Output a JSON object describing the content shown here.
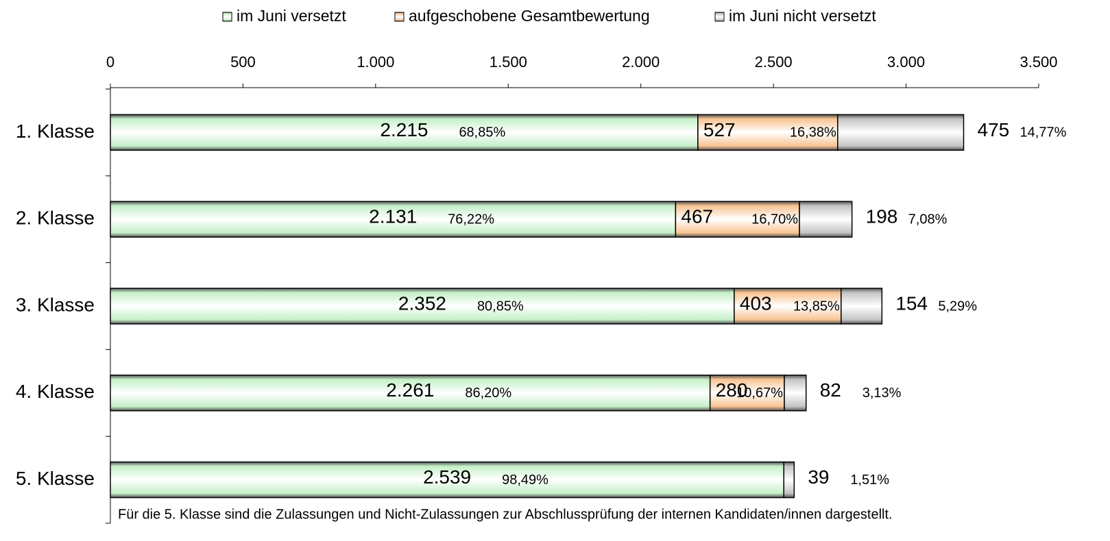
{
  "chart_data": {
    "type": "stacked-bar-horizontal",
    "categories": [
      "1. Klasse",
      "2. Klasse",
      "3. Klasse",
      "4. Klasse",
      "5. Klasse"
    ],
    "series": [
      {
        "name": "im Juni versetzt",
        "color": "#c4f0c8",
        "values": [
          2215,
          2131,
          2352,
          2261,
          2539
        ],
        "value_labels": [
          "2.215",
          "2.131",
          "2.352",
          "2.261",
          "2.539"
        ],
        "percent_labels": [
          "68,85%",
          "76,22%",
          "80,85%",
          "86,20%",
          "98,49%"
        ]
      },
      {
        "name": "aufgeschobene Gesamtbewertung",
        "color": "#f8c391",
        "values": [
          527,
          467,
          403,
          280,
          null
        ],
        "percent_labels": [
          "16,38%",
          "16,70%",
          "13,85%",
          "10,67%",
          null
        ]
      },
      {
        "name": "im Juni nicht versetzt",
        "color": "#c4c4c4",
        "values": [
          475,
          198,
          154,
          82,
          39
        ],
        "percent_labels": [
          "14,77%",
          "7,08%",
          "5,29%",
          "3,13%",
          "1,51%"
        ]
      }
    ],
    "xlim": [
      0,
      3500
    ],
    "xticks": [
      0,
      500,
      {
        "value": 1000,
        "label": "1.000"
      },
      {
        "value": 1500,
        "label": "1.500"
      },
      {
        "value": 2000,
        "label": "2.000"
      },
      {
        "value": 2500,
        "label": "2.500"
      },
      {
        "value": 3000,
        "label": "3.000"
      },
      {
        "value": 3500,
        "label": "3.500"
      }
    ],
    "legend": "top",
    "annotation": "Für die 5. Klasse sind die Zulassungen und Nicht-Zulassungen zur Abschlussprüfung der internen Kandidaten/innen dargestellt."
  }
}
